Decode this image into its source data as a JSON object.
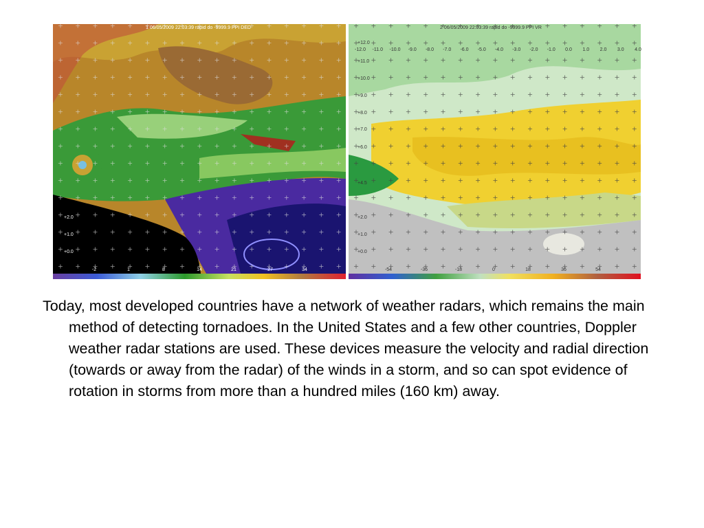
{
  "slide": {
    "figure": {
      "left_panel": {
        "header": "1 06/05/2009 22:03:39 rapid do -9999.9 PPI DED",
        "y_labels": [
          "+2.0",
          "+1.0",
          "+0.0"
        ],
        "scale_labels": [
          "-2",
          "1",
          "8",
          "14",
          "21",
          "27",
          "34"
        ]
      },
      "right_panel": {
        "header": "2 06/05/2009 22:03:39 rapid do -9999.9 PPI VR",
        "x_labels": [
          "-12.0",
          "-11.0",
          "-10.0",
          "-9.0",
          "-8.0",
          "-7.0",
          "-6.0",
          "-5.0",
          "-4.0",
          "-3.0",
          "-2.0",
          "-1.0",
          "0.0",
          "1.0",
          "2.0",
          "3.0",
          "4.0"
        ],
        "y_labels": [
          "+12.0",
          "+11.0",
          "+10.0",
          "+9.0",
          "+8.0",
          "+7.0",
          "+6.0",
          "+4.5",
          "+2.0",
          "+1.0",
          "+0.0"
        ],
        "scale_labels": [
          "-54",
          "-36",
          "-18",
          "0",
          "18",
          "36",
          "54"
        ]
      }
    },
    "body": "Today, most developed countries have a network of weather radars, which remains the main method of detecting tornadoes. In the United States and a few other countries, Doppler weather radar stations are used. These devices measure the velocity and radial direction (towards or away from the radar) of the winds in a storm, and so can spot evidence of rotation in storms from more than a hundred miles (160 km) away."
  }
}
